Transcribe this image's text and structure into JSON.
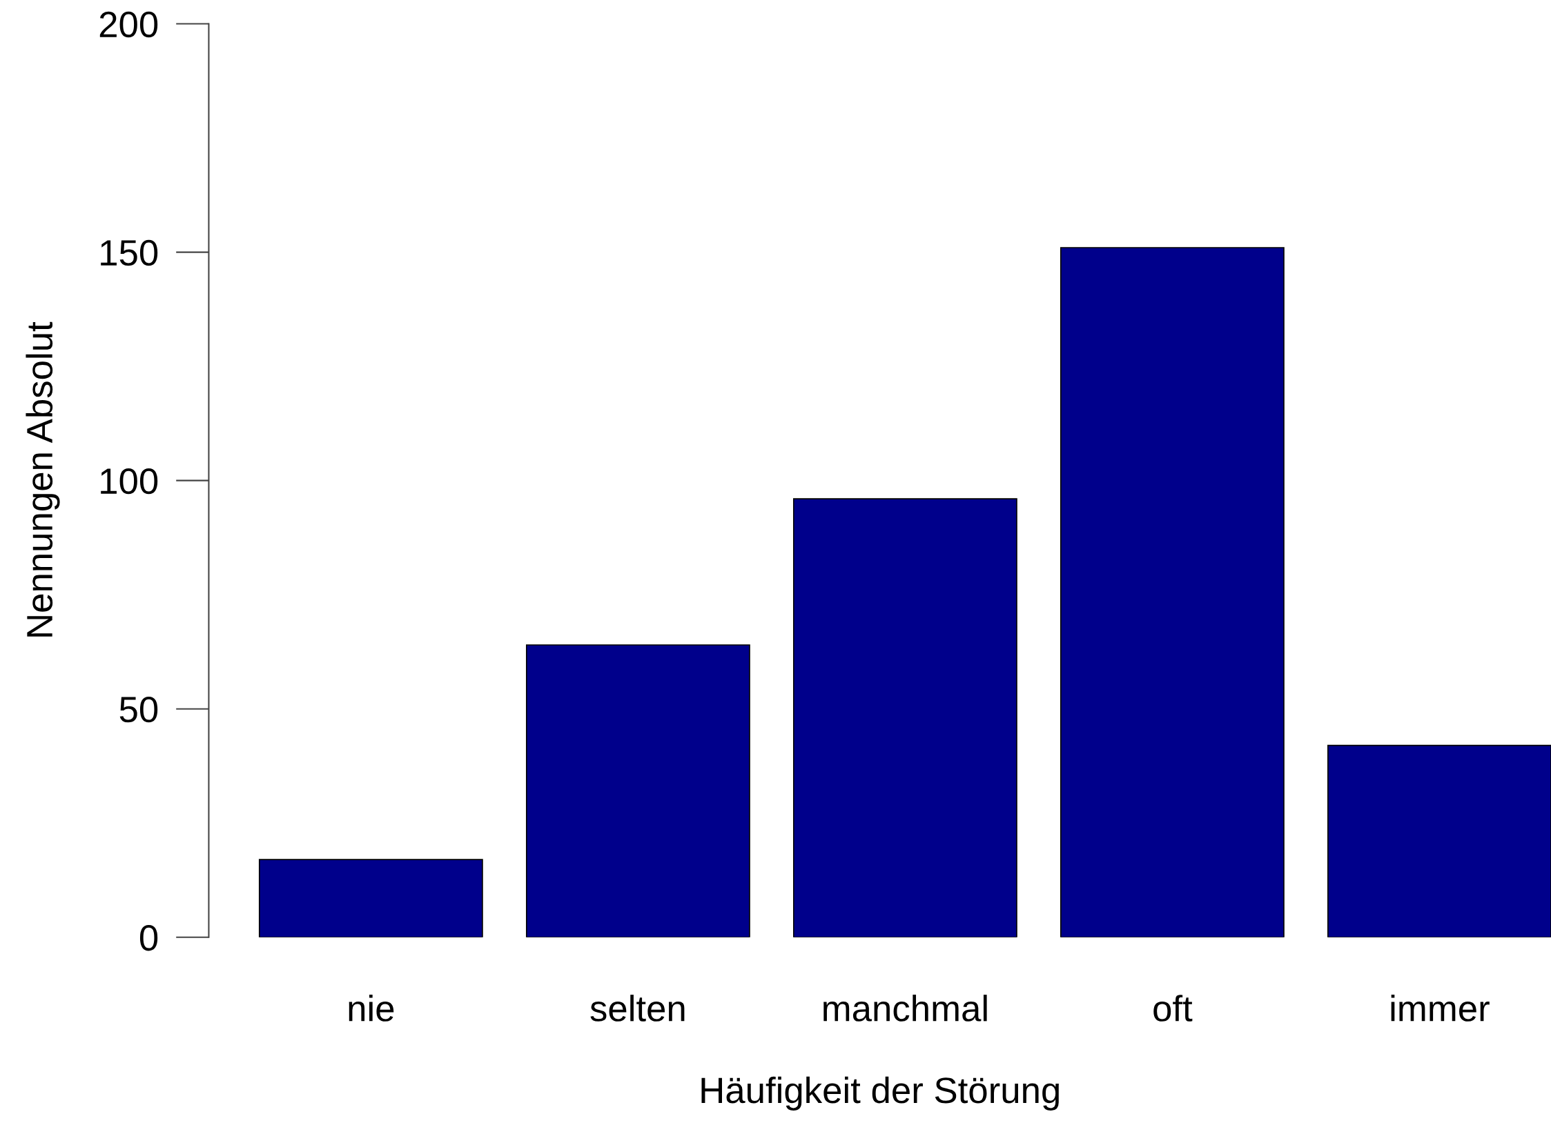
{
  "chart_data": {
    "type": "bar",
    "xlabel": "Häufigkeit der Störung",
    "ylabel": "Nennungen Absolut",
    "categories": [
      "nie",
      "selten",
      "manchmal",
      "oft",
      "immer"
    ],
    "values": [
      17,
      64,
      96,
      151,
      42
    ],
    "color": "#00008b",
    "ylim": [
      0,
      200
    ],
    "yticks": [
      0,
      50,
      100,
      150,
      200
    ],
    "grid": false,
    "legend": false
  }
}
